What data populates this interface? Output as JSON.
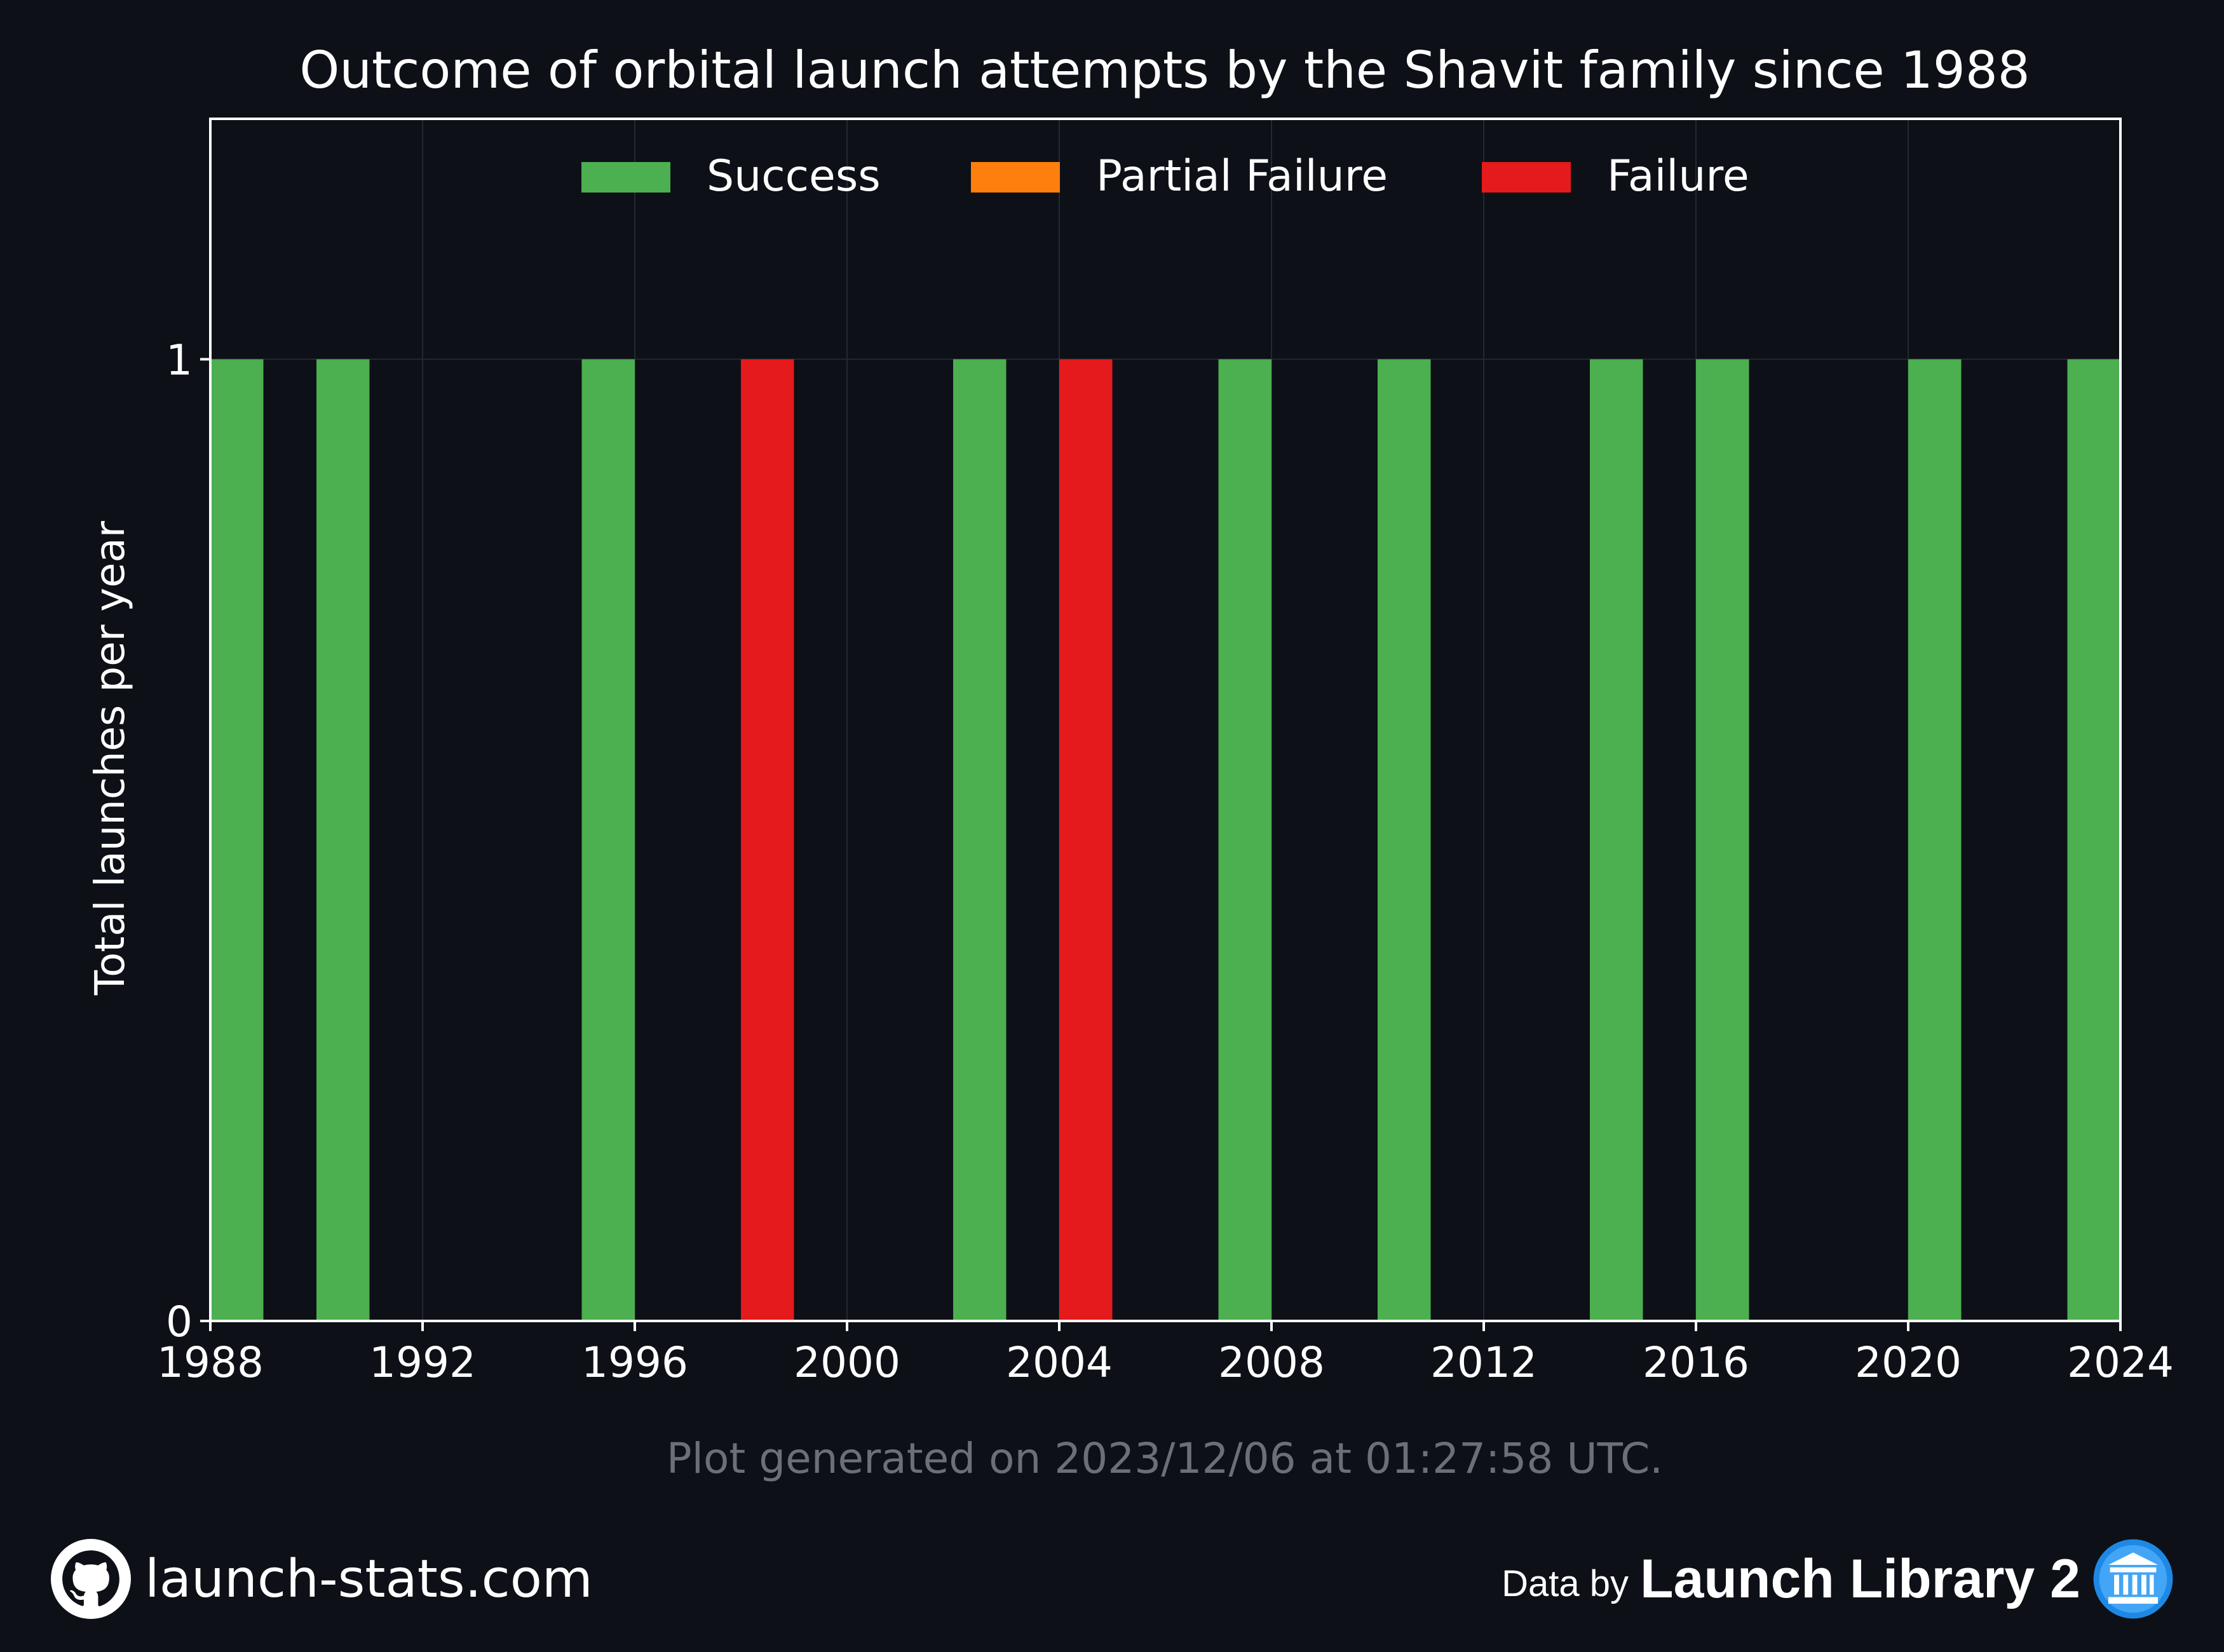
{
  "chart_data": {
    "type": "bar",
    "title": "Outcome of orbital launch attempts by the Shavit family since 1988",
    "xlabel": "",
    "ylabel": "Total launches per year",
    "xlim": [
      1988,
      2024
    ],
    "ylim": [
      0,
      1.25
    ],
    "xticks": [
      1988,
      1992,
      1996,
      2000,
      2004,
      2008,
      2012,
      2016,
      2020,
      2024
    ],
    "yticks": [
      0,
      1
    ],
    "grid": true,
    "legend_position": "top-center",
    "stacked": true,
    "categories": [
      1988,
      1990,
      1995,
      1998,
      2002,
      2004,
      2007,
      2010,
      2014,
      2016,
      2020,
      2023
    ],
    "series": [
      {
        "name": "Success",
        "color": "#4caf50",
        "values": [
          1,
          1,
          1,
          0,
          1,
          0,
          1,
          1,
          1,
          1,
          1,
          1
        ]
      },
      {
        "name": "Partial Failure",
        "color": "#ff7f0e",
        "values": [
          0,
          0,
          0,
          0,
          0,
          0,
          0,
          0,
          0,
          0,
          0,
          0
        ]
      },
      {
        "name": "Failure",
        "color": "#e41a1c",
        "values": [
          0,
          0,
          0,
          1,
          0,
          1,
          0,
          0,
          0,
          0,
          0,
          0
        ]
      }
    ]
  },
  "footer": {
    "generated_text": "Plot generated on 2023/12/06 at 01:27:58 UTC.",
    "site": "launch-stats.com",
    "data_by": "Data by",
    "source_name": "Launch Library 2"
  },
  "icons": {
    "site_icon": "github-icon",
    "source_icon": "launch-library-icon"
  },
  "colors": {
    "background": "#0d1017",
    "text": "#ffffff",
    "muted_text": "#6b6f76"
  }
}
